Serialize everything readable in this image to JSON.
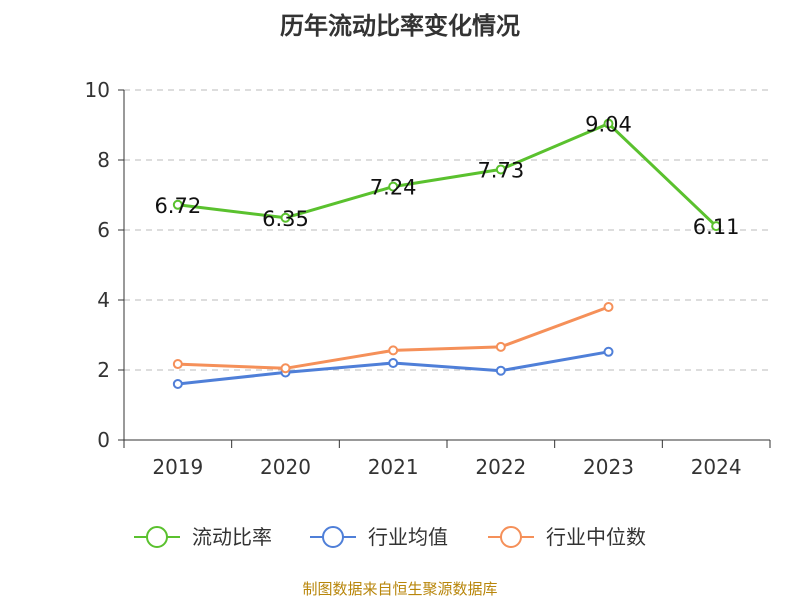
{
  "title": "历年流动比率变化情况",
  "footer": "制图数据来自恒生聚源数据库",
  "colors": {
    "current_ratio": "#5ac12e",
    "industry_avg": "#4f7fd8",
    "industry_median": "#f59059",
    "grid": "#bbbbbb",
    "axis": "#333333"
  },
  "chart_data": {
    "type": "line",
    "title": "历年流动比率变化情况",
    "categories": [
      "2019",
      "2020",
      "2021",
      "2022",
      "2023",
      "2024"
    ],
    "ylim": [
      0,
      10
    ],
    "yticks": [
      0,
      2,
      4,
      6,
      8,
      10
    ],
    "grid": "horizontal dashed",
    "legend_position": "bottom",
    "series": [
      {
        "name": "流动比率",
        "values": [
          6.72,
          6.35,
          7.24,
          7.73,
          9.04,
          6.11
        ],
        "labels": [
          "6.72",
          "6.35",
          "7.24",
          "7.73",
          "9.04",
          "6.11"
        ]
      },
      {
        "name": "行业均值",
        "values": [
          1.6,
          1.93,
          2.2,
          1.98,
          2.52,
          null
        ]
      },
      {
        "name": "行业中位数",
        "values": [
          2.17,
          2.05,
          2.56,
          2.66,
          3.8,
          null
        ]
      }
    ]
  }
}
